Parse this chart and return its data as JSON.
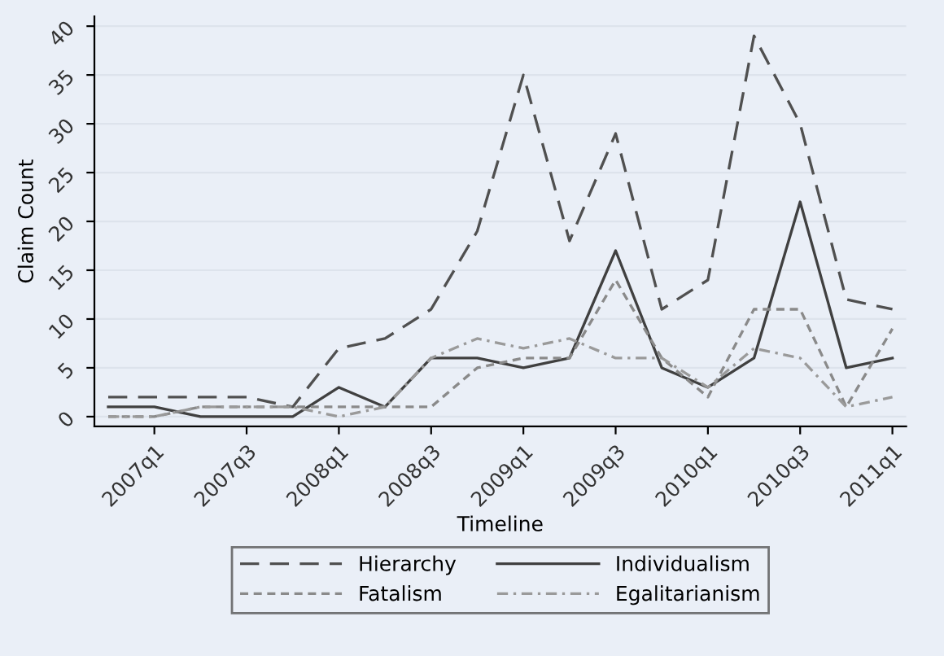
{
  "chart_data": {
    "type": "line",
    "xlabel": "Timeline",
    "ylabel": "Claim Count",
    "categories": [
      null,
      "2007q1",
      null,
      "2007q3",
      null,
      "2008q1",
      null,
      "2008q3",
      null,
      "2009q1",
      null,
      "2009q3",
      null,
      "2010q1",
      null,
      "2010q3",
      null,
      "2011q1"
    ],
    "ylim": [
      -1,
      41
    ],
    "yticks": [
      0,
      5,
      10,
      15,
      20,
      25,
      30,
      35,
      40
    ],
    "grid": "y",
    "legend": "bottom",
    "marker": "none",
    "series": [
      {
        "name": "Hierarchy",
        "color": "#505050",
        "line_style": "dashed",
        "values": [
          2,
          2,
          2,
          2,
          1,
          7,
          8,
          11,
          19,
          35,
          18,
          29,
          11,
          14,
          39,
          30,
          12,
          11
        ]
      },
      {
        "name": "Individualism",
        "color": "#404040",
        "line_style": "solid",
        "values": [
          1,
          1,
          0,
          0,
          0,
          3,
          1,
          6,
          6,
          5,
          6,
          17,
          5,
          3,
          6,
          22,
          5,
          6
        ]
      },
      {
        "name": "Fatalism",
        "color": "#8a8a8a",
        "line_style": "dotted",
        "values": [
          0,
          0,
          1,
          1,
          1,
          1,
          1,
          1,
          5,
          6,
          6,
          14,
          6,
          2,
          11,
          11,
          1,
          9
        ]
      },
      {
        "name": "Egalitarianism",
        "color": "#9a9a9a",
        "line_style": "dashdot",
        "values": [
          0,
          0,
          1,
          1,
          1,
          0,
          1,
          6,
          8,
          7,
          8,
          6,
          6,
          3,
          7,
          6,
          1,
          2
        ]
      }
    ]
  }
}
